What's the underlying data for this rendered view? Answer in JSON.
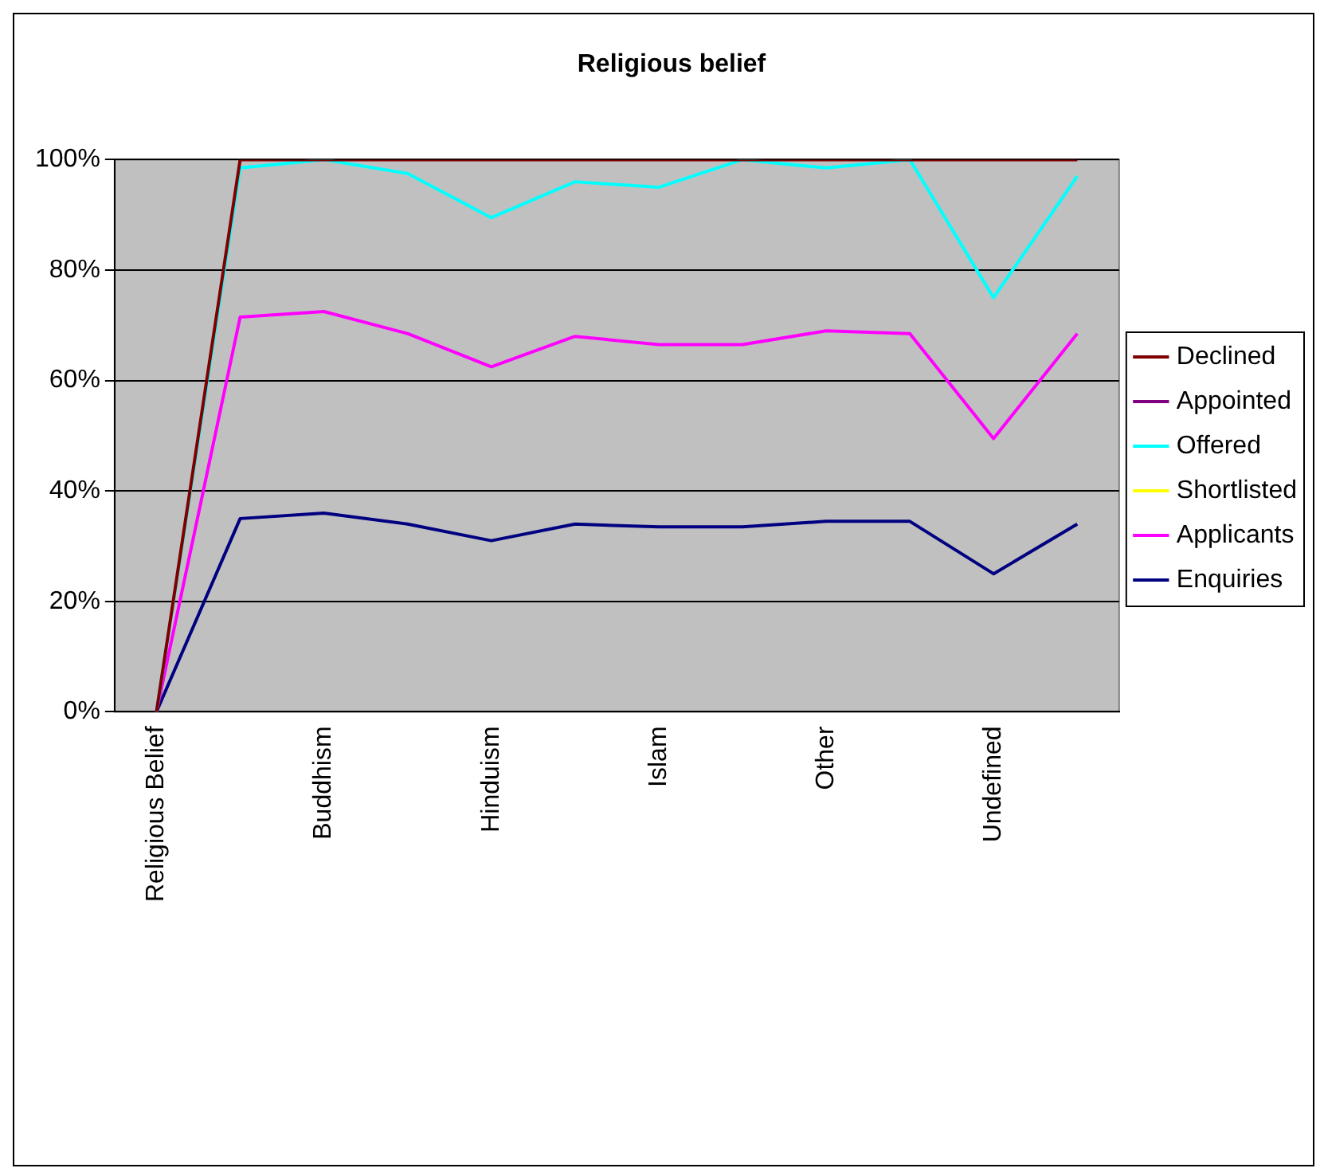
{
  "chart_data": {
    "type": "line",
    "title": "Religious belief",
    "categories": [
      "Religious Belief",
      null,
      "Buddhism",
      null,
      "Hinduism",
      null,
      "Islam",
      null,
      "Other",
      null,
      "Undefined",
      null
    ],
    "series": [
      {
        "name": "Declined",
        "color": "#800000",
        "values": [
          0,
          100,
          100,
          100,
          100,
          100,
          100,
          100,
          100,
          100,
          100,
          100
        ]
      },
      {
        "name": "Appointed",
        "color": "#800080",
        "values": [
          null,
          null,
          null,
          null,
          null,
          null,
          null,
          null,
          null,
          null,
          null,
          null
        ]
      },
      {
        "name": "Offered",
        "color": "#00ffff",
        "values": [
          0,
          98.5,
          100,
          97.5,
          89.5,
          96,
          95,
          100,
          98.5,
          100,
          75,
          97
        ]
      },
      {
        "name": "Shortlisted",
        "color": "#ffff00",
        "values": [
          null,
          null,
          null,
          null,
          null,
          null,
          null,
          null,
          null,
          null,
          null,
          null
        ]
      },
      {
        "name": "Applicants",
        "color": "#ff00ff",
        "values": [
          0,
          71.5,
          72.5,
          68.5,
          62.5,
          68,
          66.5,
          66.5,
          69,
          68.5,
          49.5,
          68.5
        ]
      },
      {
        "name": "Enquiries",
        "color": "#000080",
        "values": [
          0,
          35,
          36,
          34,
          31,
          34,
          33.5,
          33.5,
          34.5,
          34.5,
          25,
          34
        ]
      }
    ],
    "ylim": [
      0,
      100
    ],
    "yticks": [
      {
        "value": 0,
        "label": "0%"
      },
      {
        "value": 20,
        "label": "20%"
      },
      {
        "value": 40,
        "label": "40%"
      },
      {
        "value": 60,
        "label": "60%"
      },
      {
        "value": 80,
        "label": "80%"
      },
      {
        "value": 100,
        "label": "100%"
      }
    ],
    "grid": "y",
    "legend": "right",
    "marker": "none",
    "line_style": "solid"
  }
}
